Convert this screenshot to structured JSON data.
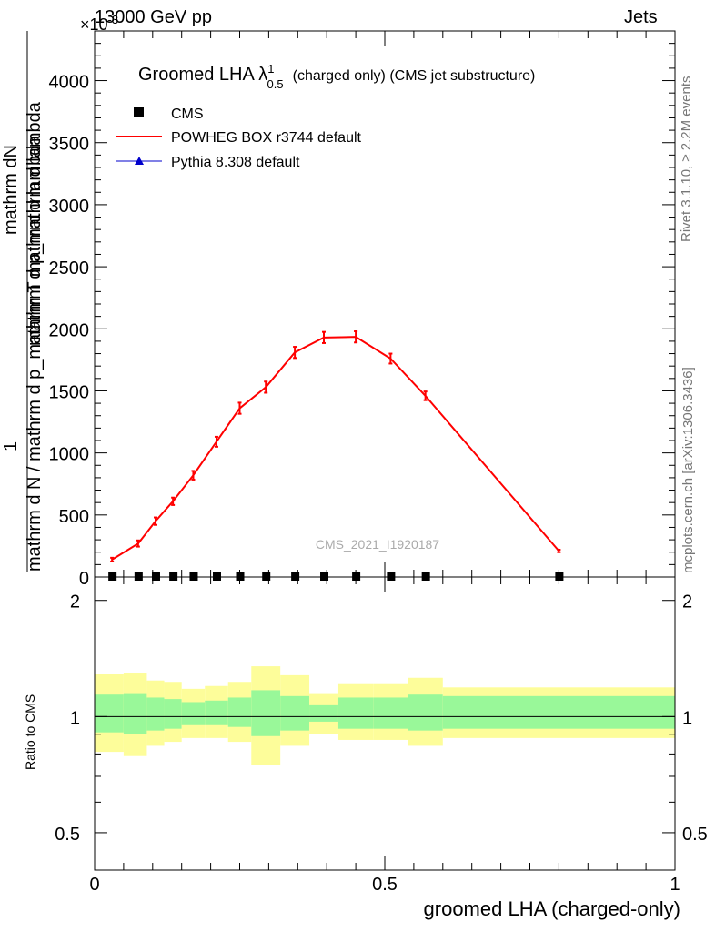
{
  "header": {
    "left": "13000 GeV pp",
    "right": "Jets",
    "exponent_label": "×10",
    "exponent_sup": "-3"
  },
  "side_labels": {
    "rivet": "Rivet 3.1.10, ≥ 2.2M events",
    "mcplots": "mcplots.cern.ch [arXiv:1306.3436]"
  },
  "colors": {
    "powheg": "#ff0000",
    "pythia": "#0000cc",
    "cms": "#000000",
    "band_inner": "#99f899",
    "band_outer": "#fdfd9a"
  },
  "chart_data": [
    {
      "type": "line",
      "title": "Groomed LHA λ",
      "title_sup": "1",
      "title_sub": "0.5",
      "title_rest": "(charged only) (CMS jet substructure)",
      "watermark": "CMS_2021_I1920187",
      "ylabel_numer": "mathrm dN",
      "ylabel_denom": "mathrm d p_mathrm d lambda",
      "ylabel_frac_numer": "1",
      "ylabel_frac_denom": "mathrm d N / mathrm d p_mathrm T mathrm d lambda",
      "ylim": [
        0,
        4400
      ],
      "xlim": [
        0,
        1
      ],
      "yticks": [
        0,
        500,
        1000,
        1500,
        2000,
        2500,
        3000,
        3500,
        4000
      ],
      "ytick_labels": [
        "0",
        "500",
        "1000",
        "1500",
        "2000",
        "2500",
        "3000",
        "3500",
        "4000"
      ],
      "legend": [
        {
          "label": "CMS",
          "marker": "square"
        },
        {
          "label": "POWHEG BOX r3744 default",
          "marker": "line"
        },
        {
          "label": "Pythia 8.308 default",
          "marker": "triangle"
        }
      ],
      "series": [
        {
          "name": "POWHEG BOX r3744 default",
          "x": [
            0.03,
            0.075,
            0.105,
            0.135,
            0.17,
            0.21,
            0.25,
            0.295,
            0.345,
            0.395,
            0.45,
            0.51,
            0.57,
            0.8
          ],
          "y": [
            140,
            270,
            450,
            610,
            820,
            1090,
            1360,
            1530,
            1810,
            1930,
            1935,
            1760,
            1460,
            210
          ],
          "yerr": [
            15,
            25,
            30,
            30,
            35,
            40,
            45,
            45,
            45,
            45,
            45,
            40,
            35,
            10
          ]
        },
        {
          "name": "CMS",
          "x": [
            0.03,
            0.075,
            0.105,
            0.135,
            0.17,
            0.21,
            0.25,
            0.295,
            0.345,
            0.395,
            0.45,
            0.51,
            0.57,
            0.8
          ],
          "y": [
            0,
            0,
            0,
            0,
            0,
            0,
            0,
            0,
            0,
            0,
            0,
            0,
            0,
            0
          ]
        }
      ]
    },
    {
      "type": "area",
      "xlabel": "groomed LHA (charged-only)",
      "ylabel": "Ratio to CMS",
      "xlim": [
        0,
        1
      ],
      "ylim": [
        0.4,
        2.3
      ],
      "log_scale_y": true,
      "xticks": [
        0,
        0.5,
        1
      ],
      "xtick_labels": [
        "0",
        "0.5",
        "1"
      ],
      "yticks": [
        0.5,
        1,
        2
      ],
      "ytick_labels": [
        "0.5",
        "1",
        "2"
      ],
      "bins": [
        0,
        0.05,
        0.09,
        0.12,
        0.15,
        0.19,
        0.23,
        0.27,
        0.32,
        0.37,
        0.42,
        0.48,
        0.54,
        0.6,
        1.0
      ],
      "inner_band_lo": [
        0.91,
        0.9,
        0.92,
        0.93,
        0.95,
        0.95,
        0.94,
        0.89,
        0.92,
        0.97,
        0.93,
        0.93,
        0.92,
        0.93
      ],
      "inner_band_hi": [
        1.14,
        1.15,
        1.12,
        1.11,
        1.09,
        1.1,
        1.12,
        1.17,
        1.13,
        1.07,
        1.12,
        1.12,
        1.14,
        1.13
      ],
      "outer_band_lo": [
        0.81,
        0.79,
        0.84,
        0.86,
        0.88,
        0.88,
        0.86,
        0.75,
        0.84,
        0.9,
        0.87,
        0.87,
        0.84,
        0.88
      ],
      "outer_band_hi": [
        1.29,
        1.3,
        1.24,
        1.23,
        1.18,
        1.2,
        1.23,
        1.35,
        1.28,
        1.15,
        1.22,
        1.22,
        1.26,
        1.19
      ]
    }
  ]
}
